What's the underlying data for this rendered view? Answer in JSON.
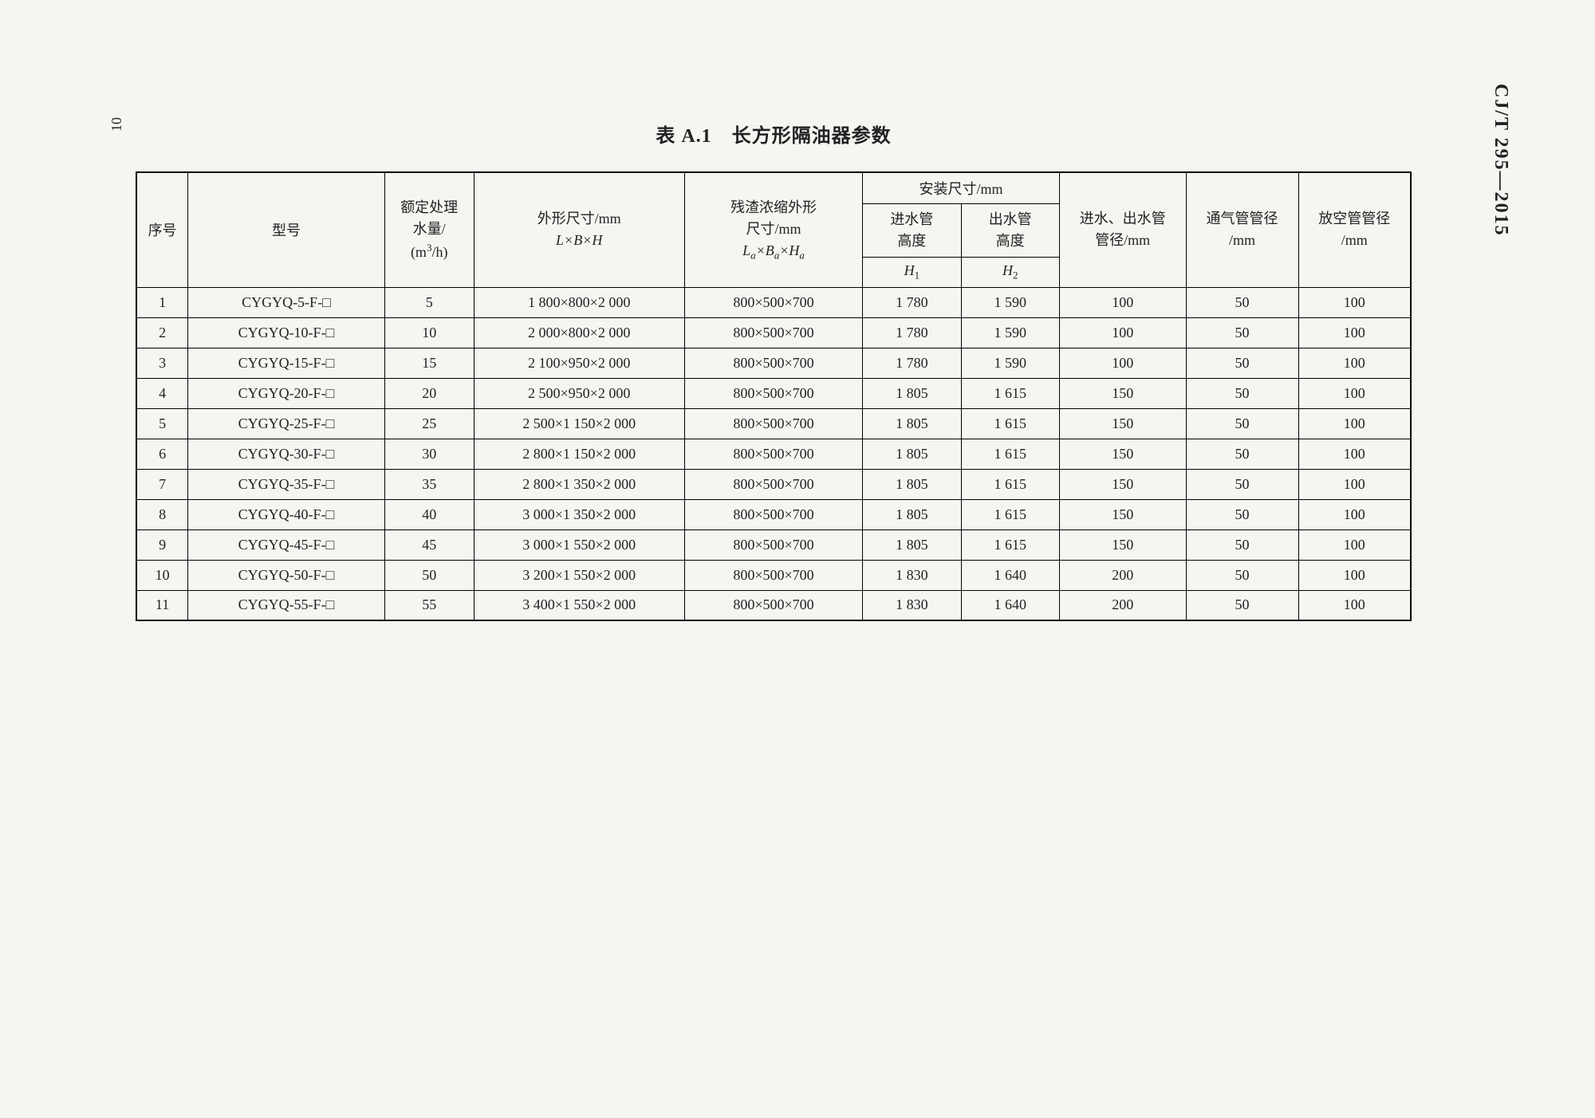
{
  "document": {
    "page_number": "10",
    "doc_code": "CJ/T 295—2015",
    "table_title": "表 A.1　长方形隔油器参数"
  },
  "table": {
    "headers": {
      "seq": "序号",
      "model": "型号",
      "capacity_line1": "额定处理",
      "capacity_line2": "水量/",
      "capacity_line3": "(m³/h)",
      "outer_line1": "外形尺寸/mm",
      "outer_line2": "L×B×H",
      "residue_line1": "残渣浓缩外形",
      "residue_line2": "尺寸/mm",
      "residue_line3": "Lₐ×Bₐ×Hₐ",
      "install": "安装尺寸/mm",
      "h1_line1": "进水管",
      "h1_line2": "高度",
      "h1_sym": "H₁",
      "h2_line1": "出水管",
      "h2_line2": "高度",
      "h2_sym": "H₂",
      "pipe_dia_line1": "进水、出水管",
      "pipe_dia_line2": "管径/mm",
      "vent_line1": "通气管管径",
      "vent_line2": "/mm",
      "drain_line1": "放空管管径",
      "drain_line2": "/mm"
    },
    "rows": [
      {
        "seq": "1",
        "model": "CYGYQ-5-F-□",
        "capacity": "5",
        "outer": "1 800×800×2 000",
        "residue": "800×500×700",
        "h1": "1 780",
        "h2": "1 590",
        "pipe": "100",
        "vent": "50",
        "drain": "100"
      },
      {
        "seq": "2",
        "model": "CYGYQ-10-F-□",
        "capacity": "10",
        "outer": "2 000×800×2 000",
        "residue": "800×500×700",
        "h1": "1 780",
        "h2": "1 590",
        "pipe": "100",
        "vent": "50",
        "drain": "100"
      },
      {
        "seq": "3",
        "model": "CYGYQ-15-F-□",
        "capacity": "15",
        "outer": "2 100×950×2 000",
        "residue": "800×500×700",
        "h1": "1 780",
        "h2": "1 590",
        "pipe": "100",
        "vent": "50",
        "drain": "100"
      },
      {
        "seq": "4",
        "model": "CYGYQ-20-F-□",
        "capacity": "20",
        "outer": "2 500×950×2 000",
        "residue": "800×500×700",
        "h1": "1 805",
        "h2": "1 615",
        "pipe": "150",
        "vent": "50",
        "drain": "100"
      },
      {
        "seq": "5",
        "model": "CYGYQ-25-F-□",
        "capacity": "25",
        "outer": "2 500×1 150×2 000",
        "residue": "800×500×700",
        "h1": "1 805",
        "h2": "1 615",
        "pipe": "150",
        "vent": "50",
        "drain": "100"
      },
      {
        "seq": "6",
        "model": "CYGYQ-30-F-□",
        "capacity": "30",
        "outer": "2 800×1 150×2 000",
        "residue": "800×500×700",
        "h1": "1 805",
        "h2": "1 615",
        "pipe": "150",
        "vent": "50",
        "drain": "100"
      },
      {
        "seq": "7",
        "model": "CYGYQ-35-F-□",
        "capacity": "35",
        "outer": "2 800×1 350×2 000",
        "residue": "800×500×700",
        "h1": "1 805",
        "h2": "1 615",
        "pipe": "150",
        "vent": "50",
        "drain": "100"
      },
      {
        "seq": "8",
        "model": "CYGYQ-40-F-□",
        "capacity": "40",
        "outer": "3 000×1 350×2 000",
        "residue": "800×500×700",
        "h1": "1 805",
        "h2": "1 615",
        "pipe": "150",
        "vent": "50",
        "drain": "100"
      },
      {
        "seq": "9",
        "model": "CYGYQ-45-F-□",
        "capacity": "45",
        "outer": "3 000×1 550×2 000",
        "residue": "800×500×700",
        "h1": "1 805",
        "h2": "1 615",
        "pipe": "150",
        "vent": "50",
        "drain": "100"
      },
      {
        "seq": "10",
        "model": "CYGYQ-50-F-□",
        "capacity": "50",
        "outer": "3 200×1 550×2 000",
        "residue": "800×500×700",
        "h1": "1 830",
        "h2": "1 640",
        "pipe": "200",
        "vent": "50",
        "drain": "100"
      },
      {
        "seq": "11",
        "model": "CYGYQ-55-F-□",
        "capacity": "55",
        "outer": "3 400×1 550×2 000",
        "residue": "800×500×700",
        "h1": "1 830",
        "h2": "1 640",
        "pipe": "200",
        "vent": "50",
        "drain": "100"
      }
    ]
  },
  "style": {
    "background": "#f5f5f2",
    "text_color": "#222",
    "border_color": "#000",
    "title_fontsize": 24,
    "header_fontsize": 18,
    "cell_fontsize": 18
  }
}
